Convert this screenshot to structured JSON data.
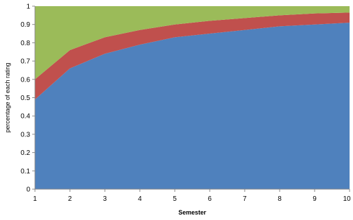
{
  "chart_data": {
    "type": "area",
    "stacked": true,
    "xlabel": "Semester",
    "ylabel": "percentage of each rating",
    "x": [
      1,
      2,
      3,
      4,
      5,
      6,
      7,
      8,
      9,
      10
    ],
    "xlim": [
      1,
      10
    ],
    "ylim": [
      0,
      1
    ],
    "yticks": [
      "0",
      "0.1",
      "0.2",
      "0.3",
      "0.4",
      "0.5",
      "0.6",
      "0.7",
      "0.8",
      "0.9",
      "1"
    ],
    "xticks": [
      "1",
      "2",
      "3",
      "4",
      "5",
      "6",
      "7",
      "8",
      "9",
      "10"
    ],
    "grid": false,
    "legend": "none",
    "series": [
      {
        "color": "#4F81BD",
        "values": [
          0.49,
          0.66,
          0.74,
          0.79,
          0.83,
          0.85,
          0.87,
          0.89,
          0.9,
          0.91
        ]
      },
      {
        "color": "#C0504D",
        "values": [
          0.11,
          0.1,
          0.09,
          0.08,
          0.07,
          0.07,
          0.065,
          0.06,
          0.06,
          0.055
        ]
      },
      {
        "color": "#9BBB59",
        "values": [
          0.4,
          0.24,
          0.17,
          0.13,
          0.1,
          0.08,
          0.065,
          0.05,
          0.04,
          0.035
        ]
      }
    ]
  }
}
